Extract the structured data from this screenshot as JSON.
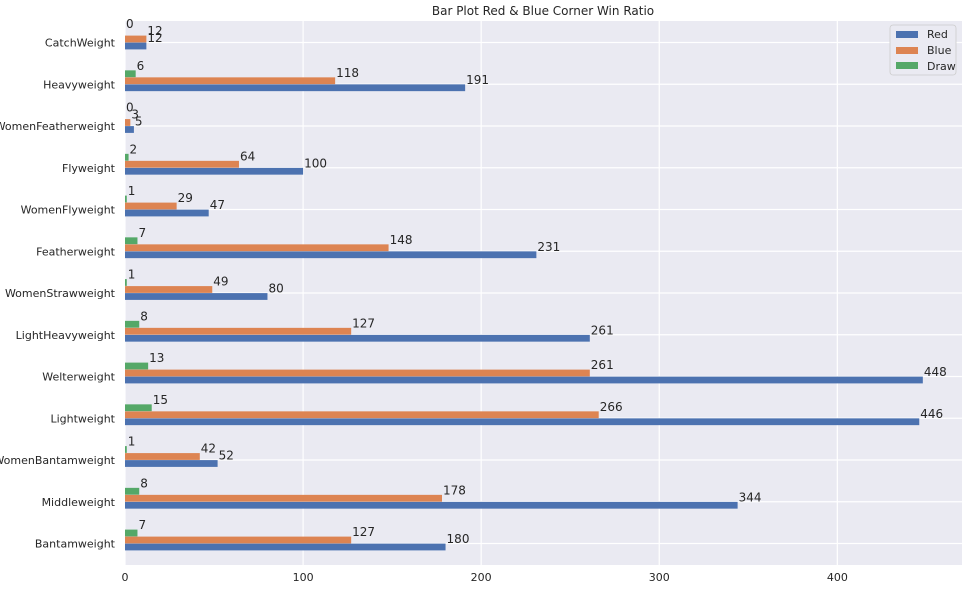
{
  "chart_data": {
    "type": "bar",
    "orientation": "horizontal",
    "title": "Bar Plot Red & Blue Corner Win Ratio",
    "xlabel": "",
    "ylabel": "",
    "xlim": [
      0,
      470
    ],
    "xticks": [
      0,
      100,
      200,
      300,
      400
    ],
    "grid": true,
    "legend_position": "top-right",
    "categories": [
      "CatchWeight",
      "Heavyweight",
      "WomenFeatherweight",
      "Flyweight",
      "WomenFlyweight",
      "Featherweight",
      "WomenStrawweight",
      "LightHeavyweight",
      "Welterweight",
      "Lightweight",
      "WomenBantamweight",
      "Middleweight",
      "Bantamweight"
    ],
    "series": [
      {
        "name": "Red",
        "color": "#4c72b0",
        "values": [
          12,
          191,
          5,
          100,
          47,
          231,
          80,
          261,
          448,
          446,
          52,
          344,
          180
        ]
      },
      {
        "name": "Blue",
        "color": "#dd8452",
        "values": [
          12,
          118,
          3,
          64,
          29,
          148,
          49,
          127,
          261,
          266,
          42,
          178,
          127
        ]
      },
      {
        "name": "Draw",
        "color": "#55a868",
        "values": [
          0,
          6,
          0,
          2,
          1,
          7,
          1,
          8,
          13,
          15,
          1,
          8,
          7
        ]
      }
    ]
  }
}
